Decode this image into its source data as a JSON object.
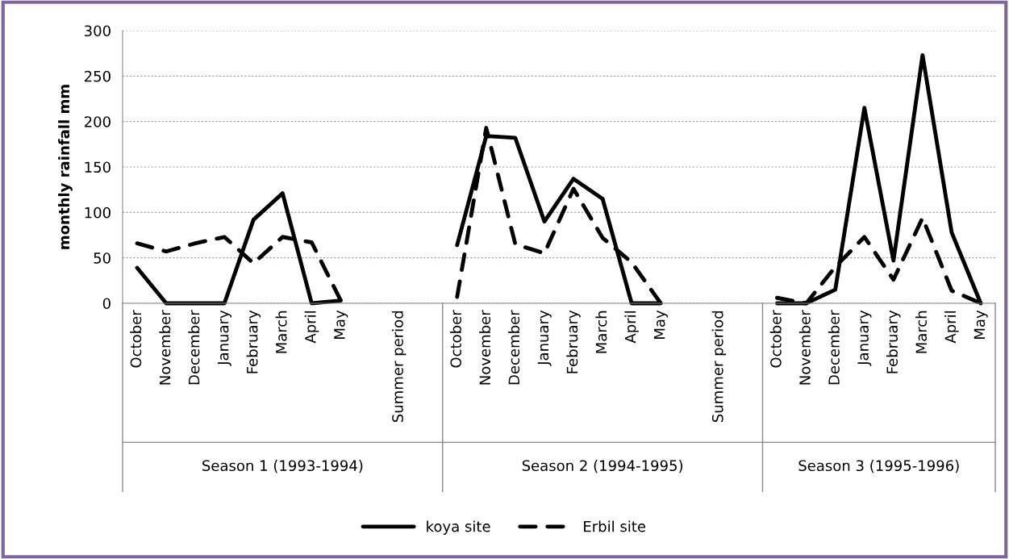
{
  "chart_data": {
    "type": "line",
    "ylabel": "monthly rainfall mm",
    "categories": [
      "October",
      "November",
      "December",
      "January",
      "February",
      "March",
      "April",
      "May",
      null,
      "Summer period",
      null,
      "October",
      "November",
      "December",
      "January",
      "February",
      "March",
      "April",
      "May",
      null,
      "Summer period",
      null,
      "October",
      "November",
      "December",
      "January",
      "February",
      "March",
      "April",
      "May"
    ],
    "series": [
      {
        "name": "koya site",
        "color": "#000000",
        "line_style": "solid",
        "values": [
          39,
          0,
          0,
          0,
          92,
          121,
          0,
          3,
          null,
          null,
          null,
          64,
          184,
          182,
          90,
          137,
          115,
          0,
          0,
          null,
          null,
          null,
          0,
          0,
          15,
          215,
          47,
          273,
          78,
          0
        ]
      },
      {
        "name": "Erbil site",
        "color": "#000000",
        "line_style": "dashed",
        "values": [
          66,
          57,
          66,
          73,
          44,
          73,
          67,
          3,
          null,
          null,
          null,
          7,
          193,
          65,
          55,
          126,
          72,
          45,
          0,
          null,
          null,
          null,
          6,
          0,
          40,
          73,
          26,
          94,
          14,
          0
        ]
      }
    ],
    "annotations": [
      "Season 1 (1993-1994)",
      "Season 2 (1994-1995)",
      "Season 3 (1995-1996)"
    ],
    "ylim": [
      0,
      300
    ],
    "yticks": [
      0,
      50,
      100,
      150,
      200,
      250,
      300
    ],
    "grid": "y",
    "legend": "bottom",
    "marker": "none"
  }
}
